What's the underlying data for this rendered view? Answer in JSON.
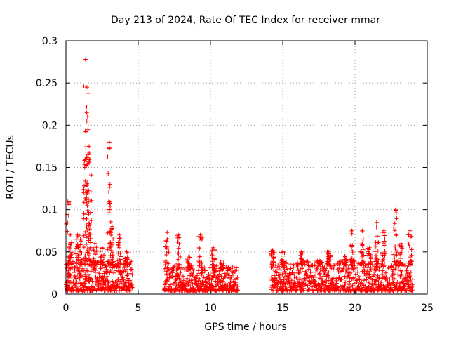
{
  "chart_data": {
    "type": "scatter",
    "title": "Day 213 of 2024, Rate Of TEC Index for receiver mmar",
    "xlabel": "GPS time / hours",
    "ylabel": "ROTI / TECUs",
    "xlim": [
      0,
      25
    ],
    "ylim": [
      0,
      0.3
    ],
    "xticks": [
      0,
      5,
      10,
      15,
      20,
      25
    ],
    "yticks": [
      0,
      0.05,
      0.1,
      0.15,
      0.2,
      0.25,
      0.3
    ],
    "grid": true,
    "marker": "plus",
    "point_color": "#ff0000",
    "segments": [
      {
        "start": 0.0,
        "end": 4.6,
        "base_max": 0.035,
        "peaks": [
          [
            0.1,
            0.11
          ],
          [
            0.3,
            0.07
          ],
          [
            0.8,
            0.07
          ],
          [
            1.0,
            0.065
          ],
          [
            1.3,
            0.15
          ],
          [
            1.35,
            0.278
          ],
          [
            1.45,
            0.245
          ],
          [
            1.5,
            0.21
          ],
          [
            1.6,
            0.175
          ],
          [
            1.65,
            0.16
          ],
          [
            2.0,
            0.06
          ],
          [
            2.5,
            0.055
          ],
          [
            3.0,
            0.18
          ],
          [
            3.05,
            0.13
          ],
          [
            3.2,
            0.08
          ],
          [
            3.7,
            0.07
          ],
          [
            4.2,
            0.05
          ]
        ]
      },
      {
        "start": 6.8,
        "end": 11.9,
        "base_max": 0.03,
        "peaks": [
          [
            7.0,
            0.073
          ],
          [
            7.8,
            0.07
          ],
          [
            8.5,
            0.045
          ],
          [
            9.3,
            0.07
          ],
          [
            10.2,
            0.055
          ],
          [
            10.8,
            0.04
          ],
          [
            11.3,
            0.03
          ]
        ]
      },
      {
        "start": 14.2,
        "end": 24.0,
        "base_max": 0.035,
        "peaks": [
          [
            14.3,
            0.052
          ],
          [
            15.0,
            0.05
          ],
          [
            16.3,
            0.05
          ],
          [
            17.5,
            0.04
          ],
          [
            18.2,
            0.05
          ],
          [
            19.3,
            0.045
          ],
          [
            19.8,
            0.075
          ],
          [
            20.5,
            0.075
          ],
          [
            21.0,
            0.055
          ],
          [
            21.5,
            0.085
          ],
          [
            22.0,
            0.075
          ],
          [
            22.8,
            0.1
          ],
          [
            23.2,
            0.06
          ],
          [
            23.8,
            0.075
          ]
        ]
      }
    ]
  }
}
